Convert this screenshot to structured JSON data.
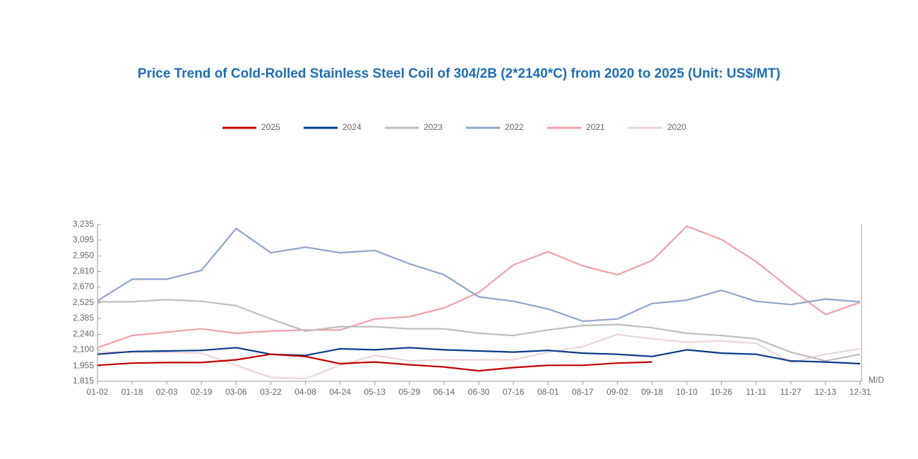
{
  "chart_data": {
    "type": "line",
    "title": "Price Trend of Cold-Rolled Stainless Steel Coil of 304/2B (2*2140*C) from 2020 to 2025 (Unit: US$/MT)",
    "x_label": "M/D",
    "categories": [
      "01-02",
      "01-18",
      "02-03",
      "02-19",
      "03-06",
      "03-22",
      "04-08",
      "04-24",
      "05-13",
      "05-29",
      "06-14",
      "06-30",
      "07-16",
      "08-01",
      "08-17",
      "09-02",
      "09-18",
      "10-10",
      "10-26",
      "11-11",
      "11-27",
      "12-13",
      "12-31"
    ],
    "ylim": [
      1815,
      3235
    ],
    "yticks": [
      {
        "value": 1815,
        "label": "1,815"
      },
      {
        "value": 1955,
        "label": "1,955"
      },
      {
        "value": 2100,
        "label": "2,100"
      },
      {
        "value": 2240,
        "label": "2,240"
      },
      {
        "value": 2385,
        "label": "2,385"
      },
      {
        "value": 2525,
        "label": "2,525"
      },
      {
        "value": 2670,
        "label": "2,670"
      },
      {
        "value": 2810,
        "label": "2,810"
      },
      {
        "value": 2950,
        "label": "2,950"
      },
      {
        "value": 3095,
        "label": "3,095"
      },
      {
        "value": 3235,
        "label": "3,235"
      }
    ],
    "grid": false,
    "series": [
      {
        "name": "2025",
        "color": "#c00000",
        "values": [
          1960,
          1980,
          1985,
          1985,
          2010,
          2060,
          2040,
          1975,
          1990,
          1965,
          1945,
          1910,
          1940,
          1960,
          1960,
          1980,
          1990,
          null,
          null,
          null,
          null,
          null,
          null
        ]
      },
      {
        "name": "2024",
        "color": "#0a3a8a",
        "values": [
          2060,
          2085,
          2090,
          2095,
          2120,
          2060,
          2050,
          2110,
          2100,
          2120,
          2100,
          2090,
          2080,
          2095,
          2070,
          2060,
          2040,
          2100,
          2070,
          2060,
          2000,
          1990,
          1975
        ]
      },
      {
        "name": "2023",
        "color": "#bdbdbd",
        "values": [
          2535,
          2535,
          2555,
          2540,
          2500,
          2380,
          2270,
          2310,
          2310,
          2290,
          2290,
          2250,
          2230,
          2280,
          2320,
          2330,
          2300,
          2250,
          2230,
          2200,
          2080,
          2000,
          2060
        ]
      },
      {
        "name": "2022",
        "color": "#8ea4cc",
        "values": [
          2545,
          2740,
          2740,
          2820,
          3200,
          2980,
          3030,
          2980,
          3000,
          2880,
          2780,
          2580,
          2540,
          2470,
          2360,
          2380,
          2520,
          2550,
          2640,
          2540,
          2510,
          2560,
          2535
        ]
      },
      {
        "name": "2021",
        "color": "#f0a0a8",
        "values": [
          2120,
          2230,
          2260,
          2290,
          2250,
          2270,
          2280,
          2280,
          2380,
          2400,
          2480,
          2620,
          2870,
          2990,
          2860,
          2780,
          2910,
          3220,
          3100,
          2900,
          2650,
          2420,
          2530
        ]
      },
      {
        "name": "2020",
        "color": "#f0d4d4",
        "values": [
          2080,
          2080,
          2080,
          2070,
          1960,
          1850,
          1840,
          1960,
          2050,
          2000,
          2010,
          2010,
          2010,
          2080,
          2130,
          2240,
          2200,
          2170,
          2180,
          2160,
          1985,
          2060,
          2110
        ]
      }
    ]
  }
}
